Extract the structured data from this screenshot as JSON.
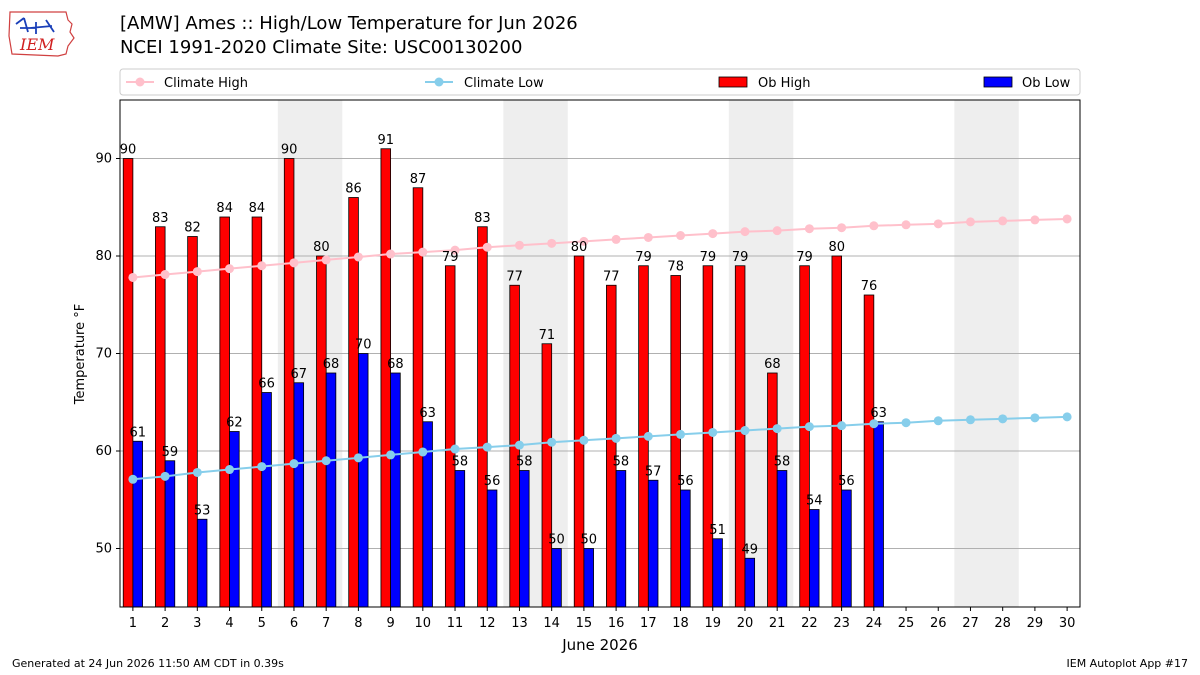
{
  "header": {
    "logo_text": "IEM",
    "title": "[AMW] Ames :: High/Low Temperature for Jun 2026",
    "subtitle": "NCEI 1991-2020 Climate Site: USC00130200"
  },
  "footer": {
    "generated": "Generated at 24 Jun 2026 11:50 AM CDT in 0.39s",
    "app": "IEM Autoplot App #17"
  },
  "colors": {
    "ob_high": "#ff0000",
    "ob_low": "#0000ff",
    "climate_high": "#ffc0cb",
    "climate_low": "#87ceeb",
    "weekend_shade": "#eeeeee",
    "grid": "#b0b0b0"
  },
  "chart_data": {
    "type": "bar",
    "xlabel": "June 2026",
    "ylabel": "Temperature °F",
    "ylim": [
      44,
      96
    ],
    "yticks": [
      50,
      60,
      70,
      80,
      90
    ],
    "days": [
      1,
      2,
      3,
      4,
      5,
      6,
      7,
      8,
      9,
      10,
      11,
      12,
      13,
      14,
      15,
      16,
      17,
      18,
      19,
      20,
      21,
      22,
      23,
      24,
      25,
      26,
      27,
      28,
      29,
      30
    ],
    "shaded_days": [
      [
        6,
        7
      ],
      [
        13,
        14
      ],
      [
        20,
        21
      ],
      [
        27,
        28
      ]
    ],
    "grid": true,
    "legend_position": "top",
    "series": [
      {
        "name": "Climate High",
        "kind": "line",
        "values": [
          77.8,
          78.1,
          78.4,
          78.7,
          79.0,
          79.3,
          79.6,
          79.9,
          80.2,
          80.4,
          80.6,
          80.9,
          81.1,
          81.3,
          81.5,
          81.7,
          81.9,
          82.1,
          82.3,
          82.5,
          82.6,
          82.8,
          82.9,
          83.1,
          83.2,
          83.3,
          83.5,
          83.6,
          83.7,
          83.8
        ]
      },
      {
        "name": "Climate Low",
        "kind": "line",
        "values": [
          57.1,
          57.4,
          57.8,
          58.1,
          58.4,
          58.7,
          59.0,
          59.3,
          59.6,
          59.9,
          60.2,
          60.4,
          60.6,
          60.9,
          61.1,
          61.3,
          61.5,
          61.7,
          61.9,
          62.1,
          62.3,
          62.5,
          62.6,
          62.8,
          62.9,
          63.1,
          63.2,
          63.3,
          63.4,
          63.5
        ]
      },
      {
        "name": "Ob High",
        "kind": "bar",
        "values": [
          90,
          83,
          82,
          84,
          84,
          90,
          80,
          86,
          91,
          87,
          79,
          83,
          77,
          71,
          80,
          77,
          79,
          78,
          79,
          79,
          68,
          79,
          80,
          76
        ]
      },
      {
        "name": "Ob Low",
        "kind": "bar",
        "values": [
          61,
          59,
          53,
          62,
          66,
          67,
          68,
          70,
          68,
          63,
          58,
          56,
          58,
          50,
          50,
          58,
          57,
          56,
          51,
          49,
          58,
          54,
          56,
          63
        ]
      }
    ]
  }
}
